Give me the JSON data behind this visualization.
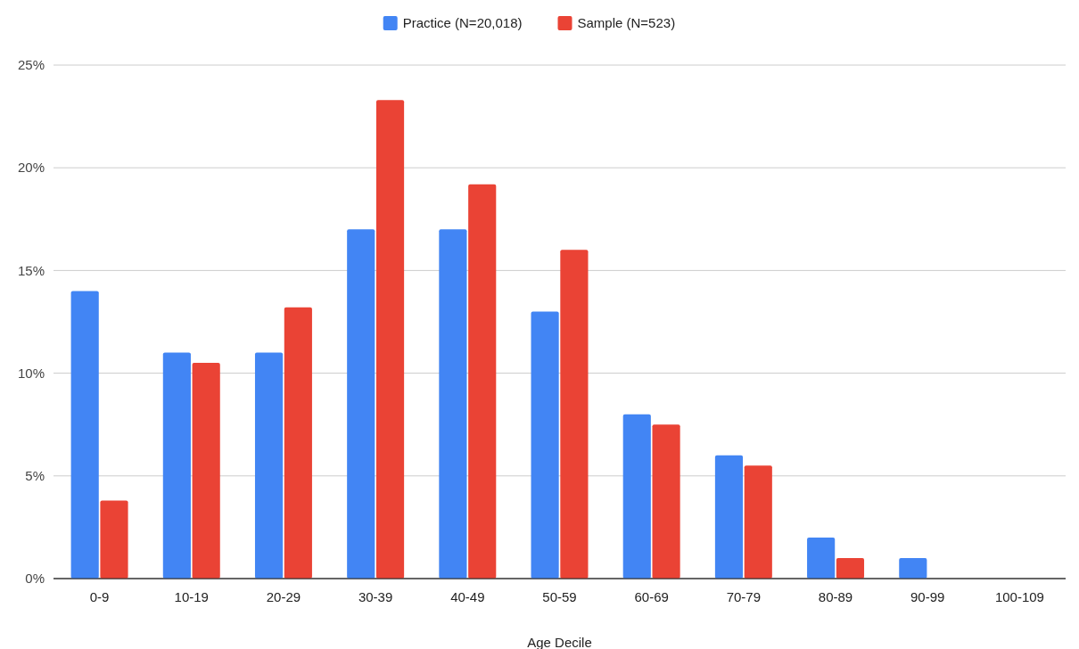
{
  "chart_data": {
    "type": "bar",
    "xlabel": "Age Decile",
    "categories": [
      "0-9",
      "10-19",
      "20-29",
      "30-39",
      "40-49",
      "50-59",
      "60-69",
      "70-79",
      "80-89",
      "90-99",
      "100-109"
    ],
    "series": [
      {
        "name": "Practice (N=20,018)",
        "color": "#4285f4",
        "values": [
          14,
          11,
          11,
          17,
          17,
          13,
          8,
          6,
          2,
          1,
          0
        ]
      },
      {
        "name": "Sample (N=523)",
        "color": "#ea4335",
        "values": [
          3.8,
          10.5,
          13.2,
          23.3,
          19.2,
          16,
          7.5,
          5.5,
          1,
          0,
          0
        ]
      }
    ],
    "ylim": [
      0,
      25
    ],
    "yticks": [
      {
        "value": 0,
        "label": "0%"
      },
      {
        "value": 5,
        "label": "5%"
      },
      {
        "value": 10,
        "label": "10%"
      },
      {
        "value": 15,
        "label": "15%"
      },
      {
        "value": 20,
        "label": "20%"
      },
      {
        "value": 25,
        "label": "25%"
      }
    ],
    "grid": "y",
    "legend": "top"
  }
}
